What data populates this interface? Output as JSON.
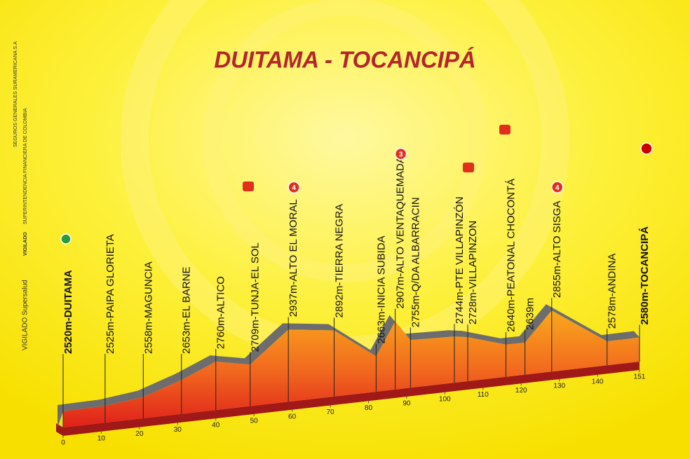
{
  "chart_data": {
    "type": "profile",
    "title": "DUITAMA - TOCANCIPÁ",
    "x": [
      0,
      11,
      21,
      31,
      40,
      49,
      59,
      71,
      82,
      87,
      91,
      102.5,
      106,
      116,
      121,
      128,
      142.5,
      151
    ],
    "values": [
      2520,
      2525,
      2558,
      2653,
      2760,
      2709,
      2937,
      2892,
      2663,
      2907,
      2755,
      2744,
      2728,
      2640,
      2639,
      2855,
      2578,
      2580
    ],
    "value_labels": [
      "2520m-DUITAMA",
      "2525m-PAIPA GLORIETA",
      "2558m-MAGUNCIA",
      "2653m-EL BARNE",
      "2760m-ALTICO",
      "2709m-TUNJA-EL SOL",
      "2937m-ALTO EL MORAL",
      "2892m-TIERRA NEGRA",
      "2663m-INICIA SUBIDA",
      "2907m-ALTO VENTAQUEMADA",
      "2755m-Q/DA ALBARRACIN",
      "2744m-PTE VILLAPINZÓN",
      "2728m-VILLAPINZON",
      "2640m-PEATONAL CHOCONTÁ",
      "2639m",
      "2855m-ALTO SISGA",
      "2578m-ANDINA",
      "2580m-TOCANCIPÁ"
    ],
    "badges": [
      null,
      null,
      null,
      null,
      null,
      null,
      "4",
      null,
      null,
      "3",
      null,
      null,
      null,
      null,
      null,
      "4",
      null,
      null
    ],
    "xlim": [
      0,
      151
    ],
    "xticks": [
      0,
      10,
      20,
      30,
      40,
      50,
      60,
      70,
      80,
      90,
      100,
      110,
      120,
      130,
      140,
      151
    ],
    "ylim": [
      2400,
      3000
    ]
  },
  "sidebar": {
    "brand": "VIGILADO Supersalud",
    "vigilado": "VIGILADO",
    "superintendencia": "SUPERINTENDENCIA FINANCIERA DE COLOMBIA",
    "seguros": "SEGUROS GENERALES SURAMERICANA S.A"
  }
}
